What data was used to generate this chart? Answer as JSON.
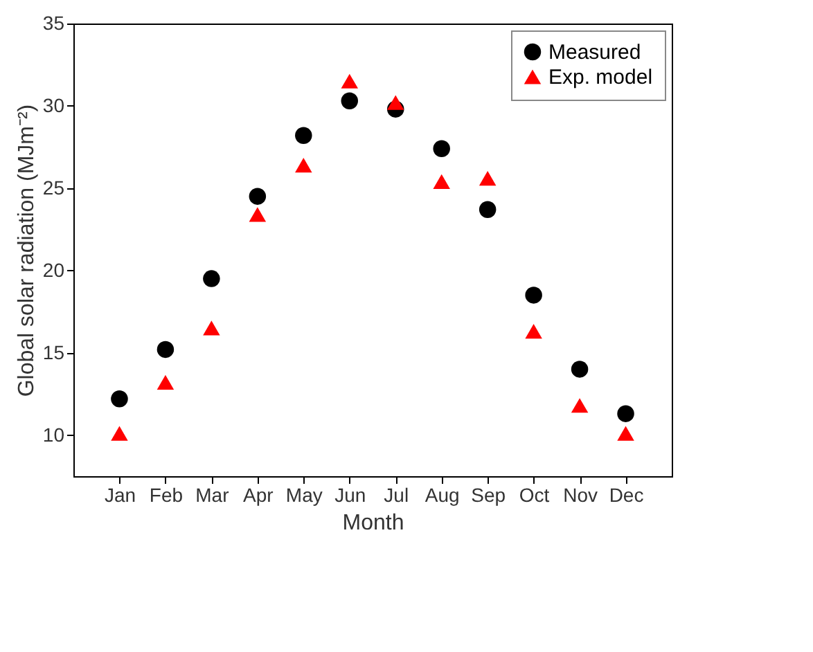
{
  "chart_data": {
    "type": "scatter",
    "xlabel": "Month",
    "ylabel": "Global solar radiation (MJm⁻²)",
    "categories": [
      "Jan",
      "Feb",
      "Mar",
      "Apr",
      "May",
      "Jun",
      "Jul",
      "Aug",
      "Sep",
      "Oct",
      "Nov",
      "Dec"
    ],
    "series": [
      {
        "name": "Measured",
        "color": "#000000",
        "marker": "circle",
        "values": [
          12.2,
          15.2,
          19.5,
          24.5,
          28.2,
          30.3,
          29.8,
          27.4,
          23.7,
          18.5,
          14.0,
          11.3
        ]
      },
      {
        "name": "Exp. model",
        "color": "#ff0000",
        "marker": "triangle",
        "values": [
          10.1,
          13.2,
          16.5,
          23.4,
          26.4,
          31.5,
          30.2,
          25.4,
          25.6,
          16.3,
          11.8,
          10.1
        ]
      }
    ],
    "ylim": [
      7.5,
      35
    ],
    "yticks": [
      10,
      15,
      20,
      25,
      30,
      35
    ],
    "grid": false,
    "legend": "top right"
  }
}
